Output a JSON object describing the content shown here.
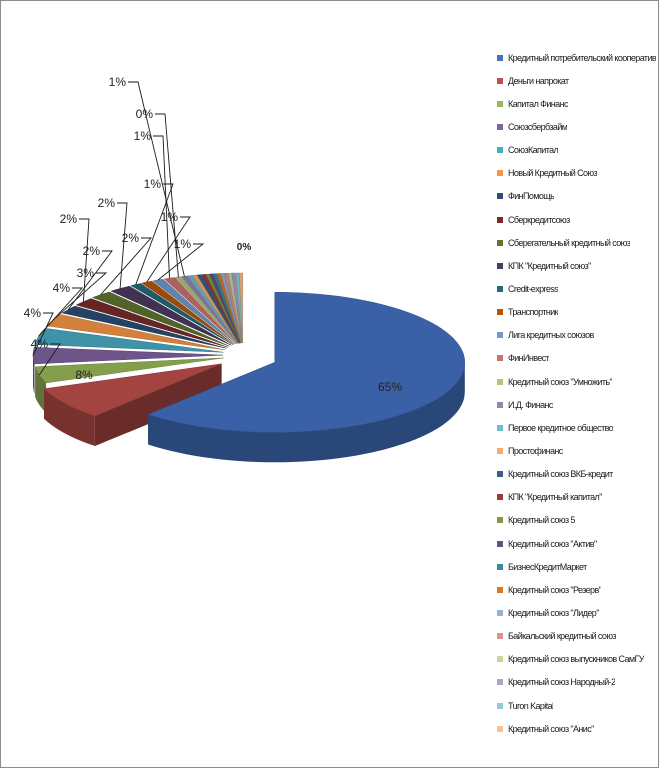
{
  "chart_data": {
    "type": "pie",
    "style": "3d-exploded",
    "legend_position": "right",
    "series": [
      {
        "name": "Кредитный потребительский кооператив",
        "label": "65%",
        "value": 65,
        "color": "#4472c4"
      },
      {
        "name": "Деньги напрокат",
        "label": "8%",
        "value": 8,
        "color": "#c0504d"
      },
      {
        "name": "Капитал Финанс",
        "label": "4%",
        "value": 4,
        "color": "#9bbb59"
      },
      {
        "name": "Союзсбербзайм",
        "label": "4%",
        "value": 4,
        "color": "#8064a2"
      },
      {
        "name": "СоюзКапитал",
        "label": "4%",
        "value": 4,
        "color": "#4bacc6"
      },
      {
        "name": "Новый Кредитный Союз",
        "label": "3%",
        "value": 3,
        "color": "#f79646"
      },
      {
        "name": "ФинПомощь",
        "label": "2%",
        "value": 2,
        "color": "#2c4d75"
      },
      {
        "name": "Сберкредитсоюз",
        "label": "2%",
        "value": 2,
        "color": "#772c2a"
      },
      {
        "name": "Сберегательный кредитный союз",
        "label": "2%",
        "value": 2,
        "color": "#5f7530"
      },
      {
        "name": "КПК \"Кредитный союз\"",
        "label": "2%",
        "value": 2,
        "color": "#4d3b62"
      },
      {
        "name": "Credit-express",
        "label": "1%",
        "value": 1,
        "color": "#276a7c"
      },
      {
        "name": "Транспортник",
        "label": "1%",
        "value": 1,
        "color": "#b65708"
      },
      {
        "name": "Лига кредитных союзов",
        "label": "1%",
        "value": 1,
        "color": "#729aca"
      },
      {
        "name": "ФинИнвест",
        "label": "1%",
        "value": 1,
        "color": "#cd7371"
      },
      {
        "name": "Кредитный союз \"Умножить\"",
        "label": "0%",
        "value": 0.5,
        "color": "#afc97a"
      },
      {
        "name": "И.Д. Финанс",
        "label": "1%",
        "value": 0.5,
        "color": "#9983b5"
      },
      {
        "name": "Первое кредитное общество",
        "label": "",
        "value": 0.4,
        "color": "#6fbdd1"
      },
      {
        "name": "Простофинанс",
        "label": "",
        "value": 0.4,
        "color": "#f9ab6b"
      },
      {
        "name": "Кредитный союз ВКБ-кредит",
        "label": "",
        "value": 0.4,
        "color": "#3a5f8f"
      },
      {
        "name": "КПК \"Кредитный капитал\"",
        "label": "",
        "value": 0.3,
        "color": "#9c3b38"
      },
      {
        "name": "Кредитный союз 5",
        "label": "",
        "value": 0.3,
        "color": "#7e9b44"
      },
      {
        "name": "Кредитный союз \"Актив\"",
        "label": "",
        "value": 0.3,
        "color": "#674f85"
      },
      {
        "name": "БизнесКредитМаркет",
        "label": "",
        "value": 0.3,
        "color": "#348da5"
      },
      {
        "name": "Кредитный союз \"Резерв\"",
        "label": "",
        "value": 0.3,
        "color": "#e07a1f"
      },
      {
        "name": "Кредитный союз \"Лидер\"",
        "label": "",
        "value": 0.3,
        "color": "#95b3d7"
      },
      {
        "name": "Байкальский кредитный союз",
        "label": "",
        "value": 0.3,
        "color": "#d99694"
      },
      {
        "name": "Кредитный союз выпускников СамГУ",
        "label": "",
        "value": 0.3,
        "color": "#c3d69b"
      },
      {
        "name": "Кредитный союз Народный-2",
        "label": "",
        "value": 0.3,
        "color": "#b3a2c7"
      },
      {
        "name": "Turon Kapital",
        "label": "",
        "value": 0.3,
        "color": "#93cddd"
      },
      {
        "name": "Кредитный союз \"Анис\"",
        "label": "",
        "value": 0.3,
        "color": "#fac090"
      }
    ]
  }
}
